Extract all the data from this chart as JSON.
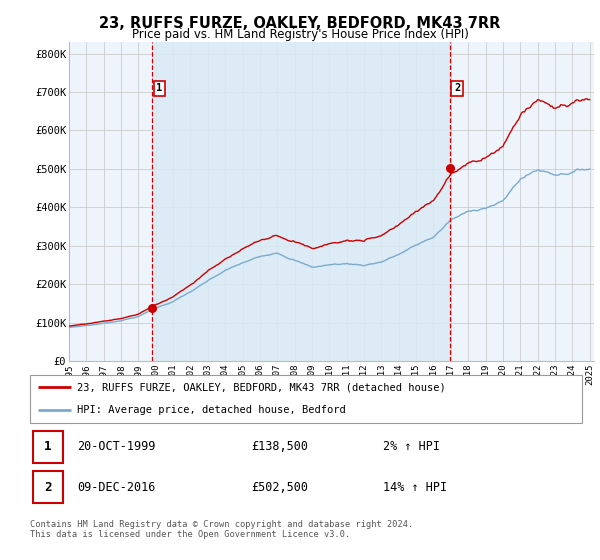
{
  "title": "23, RUFFS FURZE, OAKLEY, BEDFORD, MK43 7RR",
  "subtitle": "Price paid vs. HM Land Registry's House Price Index (HPI)",
  "ylabel_ticks": [
    "£0",
    "£100K",
    "£200K",
    "£300K",
    "£400K",
    "£500K",
    "£600K",
    "£700K",
    "£800K"
  ],
  "ylabel_values": [
    0,
    100000,
    200000,
    300000,
    400000,
    500000,
    600000,
    700000,
    800000
  ],
  "ylim": [
    0,
    830000
  ],
  "xlim_start": 1995.25,
  "xlim_end": 2025.25,
  "sale1_x": 1999.79,
  "sale1_y": 138500,
  "sale1_label": "1",
  "sale1_date": "20-OCT-1999",
  "sale1_price": "£138,500",
  "sale1_pct": "2% ↑ HPI",
  "sale2_x": 2016.93,
  "sale2_y": 502500,
  "sale2_label": "2",
  "sale2_date": "09-DEC-2016",
  "sale2_price": "£502,500",
  "sale2_pct": "14% ↑ HPI",
  "red_line_color": "#cc0000",
  "blue_line_color": "#7aabcf",
  "vline_color": "#cc0000",
  "grid_color": "#cccccc",
  "bg_color": "#edf4fb",
  "highlight_color": "#d0e8f5",
  "legend_label1": "23, RUFFS FURZE, OAKLEY, BEDFORD, MK43 7RR (detached house)",
  "legend_label2": "HPI: Average price, detached house, Bedford",
  "footer": "Contains HM Land Registry data © Crown copyright and database right 2024.\nThis data is licensed under the Open Government Licence v3.0."
}
